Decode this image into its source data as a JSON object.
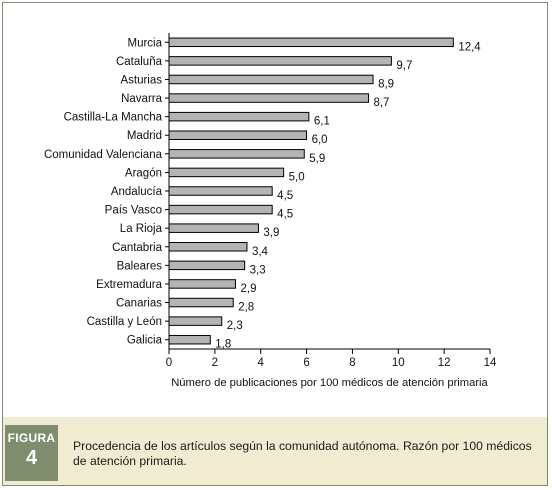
{
  "chart_data": {
    "type": "bar",
    "orientation": "horizontal",
    "categories": [
      "Murcia",
      "Cataluña",
      "Asturias",
      "Navarra",
      "Castilla-La Mancha",
      "Madrid",
      "Comunidad Valenciana",
      "Aragón",
      "Andalucía",
      "País Vasco",
      "La Rioja",
      "Cantabria",
      "Baleares",
      "Extremadura",
      "Canarias",
      "Castilla y León",
      "Galicia"
    ],
    "values": [
      12.4,
      9.7,
      8.9,
      8.7,
      6.1,
      6.0,
      5.9,
      5.0,
      4.5,
      4.5,
      3.9,
      3.4,
      3.3,
      2.9,
      2.8,
      2.3,
      1.8
    ],
    "value_labels": [
      "12,4",
      "9,7",
      "8,9",
      "8,7",
      "6,1",
      "6,0",
      "5,9",
      "5,0",
      "4,5",
      "4,5",
      "3,9",
      "3,4",
      "3,3",
      "2,9",
      "2,8",
      "2,3",
      "1,8"
    ],
    "xlabel": "Número de publicaciones por 100 médicos de atención primaria",
    "ylabel": "",
    "xlim": [
      0,
      14
    ],
    "xticks": [
      0,
      2,
      4,
      6,
      8,
      10,
      12,
      14
    ],
    "grid": false,
    "bar_color": "#b4b4b4",
    "bar_edge_color": "#000000"
  },
  "figure": {
    "tag_word": "FIGURA",
    "tag_number": "4",
    "caption": "Procedencia de los artículos según la comunidad autónoma. Razón por 100 médicos de atención primaria."
  },
  "colors": {
    "caption_background": "#f1ecd1",
    "tag_background": "#7f8c6e",
    "frame_border": "#7f8a73"
  }
}
